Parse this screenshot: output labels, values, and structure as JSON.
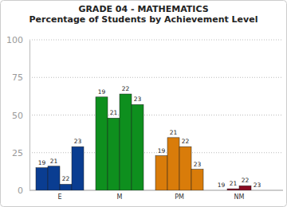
{
  "chart_data": {
    "type": "bar",
    "title": "GRADE 04 - MATHEMATICS",
    "subtitle": "Percentage of Students by Achievement Level",
    "categories": [
      "E",
      "M",
      "PM",
      "NM"
    ],
    "series": [
      {
        "name": "19",
        "colors": [
          "#0a3d91",
          "#0e8f1e",
          "#d97c0a",
          "#8a0a22"
        ],
        "values": [
          15,
          62,
          23,
          0
        ]
      },
      {
        "name": "21",
        "colors": [
          "#0a3d91",
          "#0e8f1e",
          "#d97c0a",
          "#8a0a22"
        ],
        "values": [
          16,
          48,
          35,
          1
        ]
      },
      {
        "name": "22",
        "colors": [
          "#0a3d91",
          "#0e8f1e",
          "#d97c0a",
          "#8a0a22"
        ],
        "values": [
          4,
          64,
          29,
          3
        ]
      },
      {
        "name": "23",
        "colors": [
          "#0a3d91",
          "#0e8f1e",
          "#d97c0a",
          "#8a0a22"
        ],
        "values": [
          29,
          57,
          14,
          0
        ]
      }
    ],
    "ylim": [
      0,
      100
    ],
    "yticks": [
      0,
      25,
      50,
      75,
      100
    ],
    "grid": true,
    "data_labels": true
  }
}
